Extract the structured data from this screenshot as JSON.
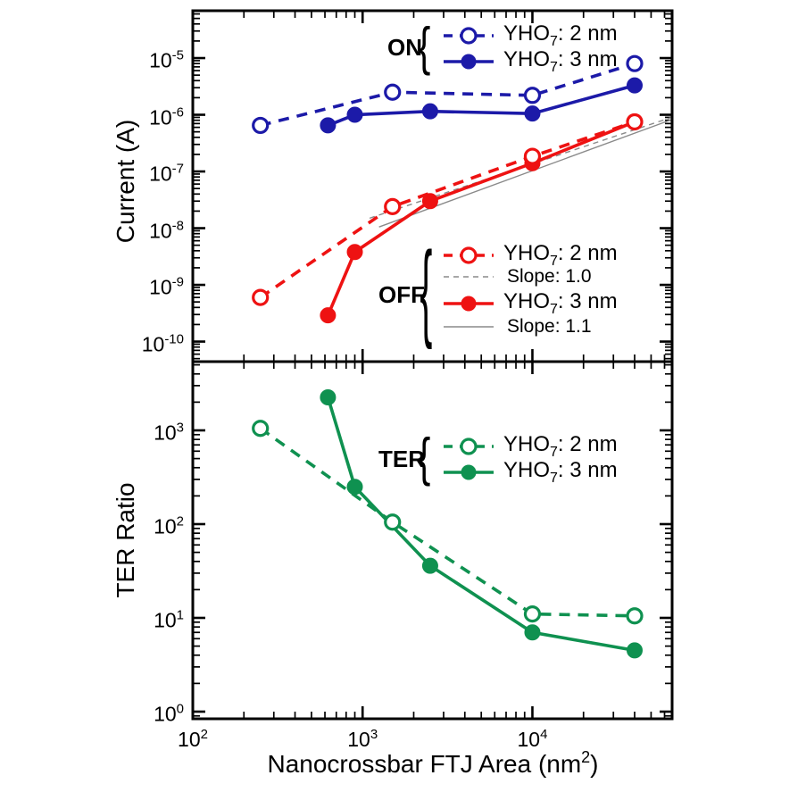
{
  "colors": {
    "blue": "#1c1aa8",
    "red": "#ee1212",
    "green": "#0f9150",
    "gray": "#8a8a8a",
    "axis": "#000000",
    "background": "#ffffff"
  },
  "axes": {
    "x_title": {
      "prefix": "Nanocrossbar FTJ Area (nm",
      "sup": "2",
      "suffix": ")"
    },
    "top_y_title": "Current (A)",
    "bottom_y_title": "TER Ratio",
    "x_tick_labels": [
      {
        "value": 100,
        "base": "10",
        "exp": "2"
      },
      {
        "value": 1000,
        "base": "10",
        "exp": "3"
      },
      {
        "value": 10000,
        "base": "10",
        "exp": "4"
      }
    ],
    "top_y_tick_labels": [
      {
        "value": 1e-05,
        "base": "10",
        "exp": "-5"
      },
      {
        "value": 1e-06,
        "base": "10",
        "exp": "-6"
      },
      {
        "value": 1e-07,
        "base": "10",
        "exp": "-7"
      },
      {
        "value": 1e-08,
        "base": "10",
        "exp": "-8"
      },
      {
        "value": 1e-09,
        "base": "10",
        "exp": "-9"
      },
      {
        "value": 1e-10,
        "base": "10",
        "exp": "-10"
      }
    ],
    "bottom_y_tick_labels": [
      {
        "value": 1000,
        "base": "10",
        "exp": "3"
      },
      {
        "value": 100,
        "base": "10",
        "exp": "2"
      },
      {
        "value": 10,
        "base": "10",
        "exp": "1"
      },
      {
        "value": 1,
        "base": "10",
        "exp": "0"
      }
    ]
  },
  "legends": {
    "on": {
      "label": "ON",
      "rows": [
        {
          "prefix": "YHO",
          "sub": "7",
          "suffix": ": 2 nm"
        },
        {
          "prefix": "YHO",
          "sub": "7",
          "suffix": ": 3 nm"
        }
      ]
    },
    "off": {
      "label": "OFF",
      "rows": [
        {
          "prefix": "YHO",
          "sub": "7",
          "suffix": ": 2 nm"
        },
        {
          "text": "Slope: 1.0"
        },
        {
          "prefix": "YHO",
          "sub": "7",
          "suffix": ": 3 nm"
        },
        {
          "text": "Slope: 1.1"
        }
      ]
    },
    "ter": {
      "label": "TER",
      "rows": [
        {
          "prefix": "YHO",
          "sub": "7",
          "suffix": ": 2 nm"
        },
        {
          "prefix": "YHO",
          "sub": "7",
          "suffix": ": 3 nm"
        }
      ]
    }
  },
  "chart_data": [
    {
      "id": "current",
      "type": "line",
      "title": "",
      "xlabel": "Nanocrossbar FTJ Area (nm^2)",
      "ylabel": "Current (A)",
      "xscale": "log",
      "yscale": "log",
      "xlim": [
        100,
        66500
      ],
      "ylim": [
        4.43e-11,
        6.84e-05
      ],
      "x_major": [
        100,
        1000,
        10000
      ],
      "y_major": [
        1e-05,
        1e-06,
        1e-07,
        1e-08,
        1e-09,
        1e-10
      ],
      "grid": false,
      "series": [
        {
          "key": "slope-1p0-guide",
          "name": "Slope: 1.0",
          "color": "gray",
          "dash": true,
          "thin": true,
          "marker": "none",
          "x": [
            1100,
            66000
          ],
          "y": [
            1.5e-08,
            9e-07
          ]
        },
        {
          "key": "slope-1p1-guide",
          "name": "Slope: 1.1",
          "color": "gray",
          "dash": false,
          "thin": true,
          "marker": "none",
          "x": [
            1250,
            66000
          ],
          "y": [
            1.05e-08,
            8.2e-07
          ]
        },
        {
          "key": "off-3nm",
          "name": "OFF YHO7: 3 nm",
          "color": "red",
          "dash": false,
          "thin": false,
          "marker": "filled",
          "x": [
            625,
            900,
            2500,
            10000,
            40000
          ],
          "y": [
            2.9e-10,
            3.8e-09,
            3e-08,
            1.4e-07,
            7.5e-07
          ]
        },
        {
          "key": "off-2nm",
          "name": "OFF YHO7: 2 nm",
          "color": "red",
          "dash": true,
          "thin": false,
          "marker": "open",
          "x": [
            250,
            1500,
            10000,
            40000
          ],
          "y": [
            6e-10,
            2.4e-08,
            1.85e-07,
            7.5e-07
          ]
        },
        {
          "key": "on-3nm",
          "name": "ON YHO7: 3 nm",
          "color": "blue",
          "dash": false,
          "thin": false,
          "marker": "filled",
          "x": [
            625,
            900,
            2500,
            10000,
            40000
          ],
          "y": [
            6.5e-07,
            1e-06,
            1.15e-06,
            1.05e-06,
            3.3e-06
          ]
        },
        {
          "key": "on-2nm",
          "name": "ON YHO7: 2 nm",
          "color": "blue",
          "dash": true,
          "thin": false,
          "marker": "open",
          "x": [
            250,
            1500,
            10000,
            40000
          ],
          "y": [
            6.5e-07,
            2.5e-06,
            2.2e-06,
            8e-06
          ]
        }
      ]
    },
    {
      "id": "ter",
      "type": "line",
      "title": "",
      "xlabel": "Nanocrossbar FTJ Area (nm^2)",
      "ylabel": "TER Ratio",
      "xscale": "log",
      "yscale": "log",
      "xlim": [
        100,
        66500
      ],
      "ylim": [
        0.839,
        5410
      ],
      "x_major": [
        100,
        1000,
        10000
      ],
      "y_major": [
        1000,
        100,
        10,
        1
      ],
      "grid": false,
      "series": [
        {
          "key": "ter-3nm",
          "name": "TER YHO7: 3 nm",
          "color": "green",
          "dash": false,
          "thin": false,
          "marker": "filled",
          "x": [
            625,
            900,
            2500,
            10000,
            40000
          ],
          "y": [
            2250,
            250,
            36,
            7,
            4.5
          ]
        },
        {
          "key": "ter-2nm",
          "name": "TER YHO7: 2 nm",
          "color": "green",
          "dash": true,
          "thin": false,
          "marker": "open",
          "x": [
            250,
            1500,
            10000,
            40000
          ],
          "y": [
            1050,
            105,
            11,
            10.5
          ]
        }
      ]
    }
  ]
}
